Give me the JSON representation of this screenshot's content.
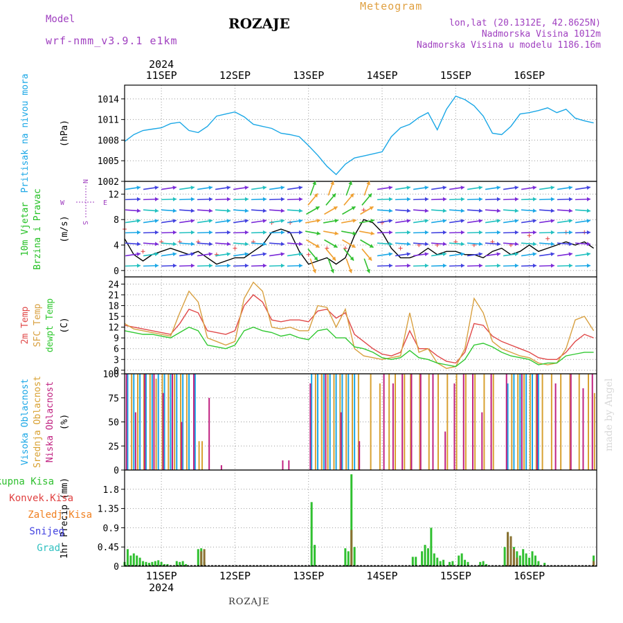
{
  "header": {
    "title": "ROZAJE",
    "subtitle": "Meteogram",
    "model_label": "Model",
    "model_value": "wrf-nmm_v3.9.1 e1km",
    "location_lines": [
      "lon,lat (20.1312E, 42.8625N)",
      "Nadmorska Visina 1012m",
      "Nadmorska Visina u modelu 1186.16m"
    ],
    "footer": "ROZAJE",
    "credit": "made by Angel"
  },
  "colors": {
    "pressure": "#1aa7e6",
    "wind_label": "#22c022",
    "wind_dir_label": "#a040c0",
    "temp2m": "#e04848",
    "sfc": "#d8a040",
    "dewpt": "#30c830",
    "high_cloud": "#1aa7e6",
    "mid_cloud": "#d8a030",
    "low_cloud": "#c02080",
    "total": "#30c030",
    "conv": "#e04040",
    "frozen": "#f08020",
    "snow": "#4040e0",
    "hail": "#30c0c0"
  },
  "chart_data": [
    {
      "type": "line",
      "name": "pressure",
      "ylabel": "(hPa)",
      "side_labels": [
        "Pritisak na nivou mora"
      ],
      "ylim": [
        1002,
        1016
      ],
      "yticks": [
        1002,
        1005,
        1008,
        1011,
        1014
      ],
      "x_days": [
        "11SEP",
        "12SEP",
        "13SEP",
        "14SEP",
        "15SEP",
        "16SEP"
      ],
      "x_year": "2024",
      "grid": true,
      "series": [
        {
          "x": [
            0,
            3,
            6,
            9,
            12,
            15,
            18,
            21,
            24,
            27,
            30,
            33,
            36,
            39,
            42,
            45,
            48,
            51,
            54,
            57,
            60,
            63,
            66,
            69,
            72,
            75,
            78,
            81,
            84,
            87,
            90,
            93,
            96,
            99,
            102,
            105,
            108,
            111,
            114,
            117,
            120,
            123,
            126,
            129,
            132,
            135,
            138,
            141,
            144,
            147,
            150,
            153
          ],
          "values": [
            1007.8,
            1008.8,
            1009.4,
            1009.6,
            1009.8,
            1010.4,
            1010.6,
            1009.4,
            1009.1,
            1010.0,
            1011.5,
            1011.8,
            1012.1,
            1011.4,
            1010.3,
            1010.0,
            1009.7,
            1009.0,
            1008.8,
            1008.5,
            1007.2,
            1005.8,
            1004.2,
            1003.0,
            1004.5,
            1005.4,
            1005.7,
            1006.0,
            1006.3,
            1008.5,
            1009.8,
            1010.3,
            1011.3,
            1012.0,
            1009.5,
            1012.5,
            1014.4,
            1013.9,
            1013.0,
            1011.5,
            1009.0,
            1008.8,
            1010.0,
            1011.8,
            1012.0,
            1012.3,
            1012.7,
            1012.0,
            1012.5,
            1011.2,
            1010.8,
            1010.5
          ]
        }
      ]
    },
    {
      "type": "line",
      "name": "wind",
      "ylabel": "(m/s)",
      "side_labels": [
        "10m Vjetar",
        "Brzina i Pravac"
      ],
      "compass": [
        "N",
        "E",
        "S",
        "W"
      ],
      "ylim": [
        -1,
        14
      ],
      "yticks": [
        0,
        4,
        8,
        12
      ],
      "series": [
        {
          "x": [
            0,
            3,
            6,
            9,
            12,
            15,
            18,
            21,
            24,
            27,
            30,
            33,
            36,
            39,
            42,
            45,
            48,
            51,
            54,
            57,
            60,
            63,
            66,
            69,
            72,
            75,
            78,
            81,
            84,
            87,
            90,
            93,
            96,
            99,
            102,
            105,
            108,
            111,
            114,
            117,
            120,
            123,
            126,
            129,
            132,
            135,
            138,
            141,
            144,
            147,
            150,
            153
          ],
          "values": [
            5.0,
            2.5,
            1.5,
            2.5,
            3.0,
            3.5,
            3.0,
            2.5,
            3.0,
            2.0,
            1.0,
            1.5,
            2.0,
            2.0,
            3.0,
            4.0,
            6.0,
            6.5,
            6.0,
            3.0,
            1.0,
            1.5,
            2.0,
            1.0,
            2.0,
            5.5,
            8.0,
            7.5,
            6.0,
            3.5,
            2.0,
            2.0,
            2.5,
            3.5,
            2.5,
            3.0,
            3.0,
            2.5,
            2.5,
            2.0,
            3.0,
            3.5,
            2.5,
            3.0,
            4.0,
            3.0,
            3.5,
            4.0,
            4.5,
            4.0,
            4.5,
            3.5
          ]
        }
      ]
    },
    {
      "type": "line",
      "name": "temperature",
      "ylabel": "(C)",
      "side_labels": [
        "2m Temp",
        "SFC Temp",
        "dewpt Temp"
      ],
      "ylim": [
        -1,
        26
      ],
      "yticks": [
        0,
        3,
        6,
        9,
        12,
        15,
        18,
        21,
        24
      ],
      "series": [
        {
          "name": "2m Temp",
          "x": [
            0,
            3,
            6,
            9,
            12,
            15,
            18,
            21,
            24,
            27,
            30,
            33,
            36,
            39,
            42,
            45,
            48,
            51,
            54,
            57,
            60,
            63,
            66,
            69,
            72,
            75,
            78,
            81,
            84,
            87,
            90,
            93,
            96,
            99,
            102,
            105,
            108,
            111,
            114,
            117,
            120,
            123,
            126,
            129,
            132,
            135,
            138,
            141,
            144,
            147,
            150,
            153
          ],
          "values": [
            12.5,
            12.0,
            11.5,
            11.0,
            10.5,
            10.0,
            13.0,
            17.0,
            16.0,
            11.0,
            10.5,
            10.0,
            11.0,
            18.0,
            21.0,
            19.0,
            14.0,
            13.5,
            14.0,
            14.0,
            13.5,
            16.5,
            17.0,
            14.5,
            16.0,
            10.0,
            8.0,
            6.0,
            4.5,
            4.0,
            5.0,
            11.0,
            6.0,
            6.0,
            4.0,
            2.5,
            2.0,
            5.0,
            13.0,
            12.5,
            9.5,
            8.0,
            7.0,
            6.0,
            5.0,
            3.5,
            3.0,
            3.0,
            5.0,
            8.0,
            10.0,
            9.0
          ]
        },
        {
          "name": "SFC Temp",
          "x": [
            0,
            3,
            6,
            9,
            12,
            15,
            18,
            21,
            24,
            27,
            30,
            33,
            36,
            39,
            42,
            45,
            48,
            51,
            54,
            57,
            60,
            63,
            66,
            69,
            72,
            75,
            78,
            81,
            84,
            87,
            90,
            93,
            96,
            99,
            102,
            105,
            108,
            111,
            114,
            117,
            120,
            123,
            126,
            129,
            132,
            135,
            138,
            141,
            144,
            147,
            150,
            153
          ],
          "values": [
            13.0,
            11.5,
            11.0,
            10.5,
            10.0,
            9.5,
            16.0,
            22.0,
            19.0,
            9.0,
            8.0,
            7.0,
            8.0,
            20.0,
            24.5,
            22.0,
            12.0,
            11.5,
            12.0,
            11.0,
            11.0,
            18.0,
            17.5,
            12.0,
            17.0,
            6.0,
            4.0,
            3.5,
            3.0,
            3.5,
            4.0,
            16.0,
            5.0,
            6.0,
            2.0,
            0.5,
            1.0,
            6.0,
            20.0,
            16.0,
            8.0,
            6.0,
            5.0,
            4.0,
            3.5,
            2.0,
            1.5,
            2.0,
            6.0,
            14.0,
            15.0,
            11.0
          ]
        },
        {
          "name": "dewpt Temp",
          "x": [
            0,
            3,
            6,
            9,
            12,
            15,
            18,
            21,
            24,
            27,
            30,
            33,
            36,
            39,
            42,
            45,
            48,
            51,
            54,
            57,
            60,
            63,
            66,
            69,
            72,
            75,
            78,
            81,
            84,
            87,
            90,
            93,
            96,
            99,
            102,
            105,
            108,
            111,
            114,
            117,
            120,
            123,
            126,
            129,
            132,
            135,
            138,
            141,
            144,
            147,
            150,
            153
          ],
          "values": [
            11.0,
            10.5,
            10.0,
            10.0,
            9.5,
            9.0,
            10.5,
            12.0,
            11.0,
            7.0,
            6.5,
            6.0,
            7.0,
            11.0,
            12.0,
            11.0,
            10.5,
            9.5,
            10.0,
            9.0,
            8.5,
            11.0,
            11.5,
            9.0,
            9.0,
            6.5,
            6.0,
            5.0,
            3.5,
            3.0,
            3.5,
            5.5,
            3.5,
            3.0,
            2.0,
            1.5,
            1.0,
            3.0,
            7.0,
            7.5,
            6.5,
            5.0,
            4.0,
            3.5,
            3.0,
            1.5,
            2.0,
            2.0,
            4.0,
            4.5,
            5.0,
            5.0
          ]
        }
      ]
    },
    {
      "type": "bar",
      "name": "clouds",
      "ylabel": "(%)",
      "side_labels": [
        "Visoka Oblacnost",
        "Srednja Oblacnost",
        "Niska Oblacnost"
      ],
      "ylim": [
        0,
        100
      ],
      "yticks": [
        0,
        25,
        50,
        75,
        100
      ],
      "series": [
        {
          "name": "Visoka Oblacnost",
          "x": [
            1,
            3,
            5,
            7,
            9,
            11,
            13,
            15,
            17,
            19,
            21,
            23,
            61,
            63,
            65,
            67,
            69,
            71,
            73,
            75,
            125,
            127,
            129,
            131,
            133,
            135
          ],
          "values": [
            100,
            100,
            100,
            100,
            100,
            100,
            100,
            100,
            100,
            100,
            100,
            100,
            100,
            100,
            100,
            100,
            100,
            100,
            100,
            100,
            90,
            100,
            100,
            100,
            100,
            100
          ]
        },
        {
          "name": "Srednja Oblacnost",
          "x": [
            2,
            4,
            6,
            8,
            10,
            12,
            14,
            16,
            18,
            20,
            24,
            25,
            62,
            64,
            66,
            68,
            70,
            72,
            74,
            76,
            80,
            83,
            86,
            88,
            91,
            93,
            96,
            99,
            102,
            105,
            108,
            111,
            114,
            117,
            120,
            126,
            128,
            130,
            132,
            134,
            136,
            139,
            142,
            145,
            148,
            151,
            153
          ],
          "values": [
            100,
            100,
            100,
            100,
            95,
            100,
            100,
            100,
            100,
            100,
            30,
            30,
            100,
            100,
            100,
            100,
            100,
            100,
            100,
            100,
            100,
            90,
            100,
            100,
            100,
            100,
            100,
            100,
            100,
            100,
            100,
            100,
            100,
            100,
            100,
            100,
            100,
            100,
            100,
            100,
            100,
            100,
            100,
            100,
            100,
            100,
            80
          ]
        },
        {
          "name": "Niska Oblacnost",
          "x": [
            0,
            3,
            6,
            9,
            12,
            15,
            18,
            22,
            27,
            31,
            51,
            53,
            60,
            65,
            70,
            76,
            84,
            87,
            90,
            93,
            96,
            100,
            104,
            107,
            110,
            113,
            116,
            119,
            124,
            129,
            134,
            140,
            145,
            149,
            152
          ],
          "values": [
            100,
            60,
            100,
            100,
            80,
            100,
            50,
            100,
            75,
            5,
            10,
            10,
            90,
            100,
            60,
            30,
            100,
            90,
            100,
            100,
            100,
            100,
            40,
            90,
            100,
            100,
            60,
            100,
            100,
            100,
            100,
            90,
            100,
            85,
            100
          ]
        }
      ]
    },
    {
      "type": "bar",
      "name": "precipitation",
      "ylabel": "1hr Precip (mm)",
      "side_labels": [
        "Ukupna Kisa",
        "Konvek.Kisa",
        "Zaledj.Kisa",
        "Snijeg",
        "Grad"
      ],
      "ylim": [
        0,
        2.25
      ],
      "yticks": [
        0,
        0.45,
        0.9,
        1.35,
        1.8
      ],
      "ytick_labels": [
        "0",
        "0.45",
        "0.9",
        "1.35",
        "1.8"
      ],
      "x_days": [
        "11SEP",
        "12SEP",
        "13SEP",
        "14SEP",
        "15SEP",
        "16SEP"
      ],
      "x_year": "2024",
      "series": [
        {
          "name": "Ukupna Kisa",
          "x": [
            0,
            1,
            2,
            3,
            4,
            5,
            6,
            7,
            8,
            9,
            10,
            11,
            12,
            13,
            14,
            17,
            18,
            19,
            20,
            24,
            25,
            26,
            61,
            62,
            72,
            73,
            74,
            75,
            94,
            95,
            97,
            98,
            99,
            100,
            101,
            102,
            103,
            104,
            106,
            107,
            109,
            110,
            111,
            112,
            116,
            117,
            118,
            124,
            125,
            126,
            127,
            128,
            129,
            130,
            131,
            132,
            133,
            134,
            135,
            137,
            153
          ],
          "values": [
            0.1,
            0.4,
            0.25,
            0.3,
            0.25,
            0.2,
            0.12,
            0.1,
            0.08,
            0.1,
            0.12,
            0.14,
            0.1,
            0.05,
            0.05,
            0.12,
            0.1,
            0.12,
            0.05,
            0.4,
            0.42,
            0.1,
            1.5,
            0.5,
            0.42,
            0.35,
            2.15,
            0.45,
            0.22,
            0.22,
            0.35,
            0.5,
            0.42,
            0.9,
            0.3,
            0.2,
            0.12,
            0.15,
            0.1,
            0.12,
            0.25,
            0.3,
            0.15,
            0.1,
            0.1,
            0.12,
            0.05,
            0.45,
            0.8,
            0.7,
            0.45,
            0.35,
            0.25,
            0.4,
            0.3,
            0.2,
            0.35,
            0.25,
            0.12,
            0.08,
            0.25
          ]
        },
        {
          "name": "Konvek.Kisa",
          "x": [
            25,
            26,
            74,
            125,
            126,
            127,
            128,
            153
          ],
          "values": [
            0.35,
            0.4,
            0.85,
            0.8,
            0.7,
            0.4,
            0.2,
            0.12
          ]
        }
      ]
    }
  ]
}
